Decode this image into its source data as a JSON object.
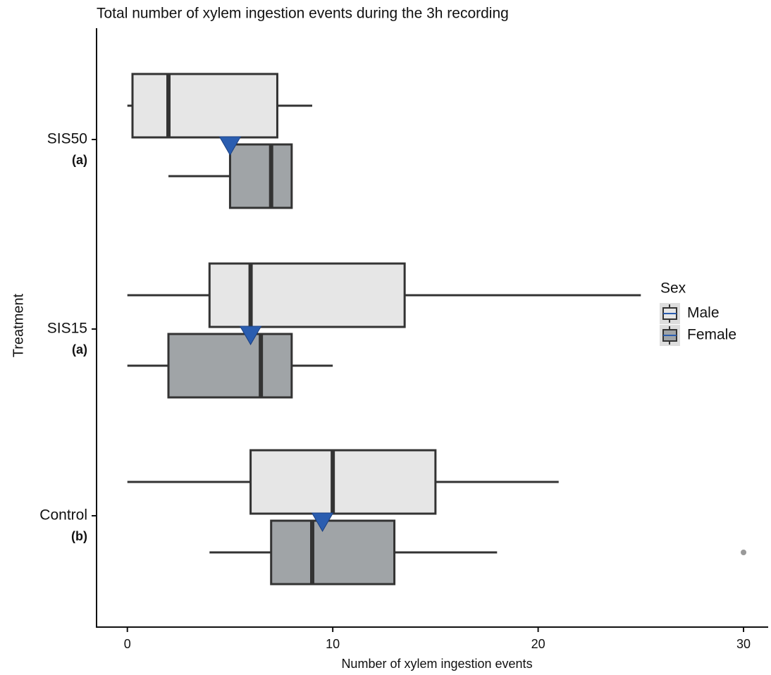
{
  "chart_data": {
    "type": "boxplot",
    "orientation": "horizontal",
    "title": "Total number of xylem ingestion events during the 3h recording",
    "x_label": "Number of xylem ingestion events",
    "y_label": "Treatment",
    "categories": [
      "SIS50",
      "SIS15",
      "Control"
    ],
    "group_letters": [
      "(a)",
      "(a)",
      "(b)"
    ],
    "xlim": [
      -1.5,
      31.2
    ],
    "xticks": [
      0,
      10,
      20,
      30
    ],
    "legend_title": "Sex",
    "legend_position": "right",
    "series": [
      {
        "name": "Male",
        "color": "#e6e6e6",
        "boxes": [
          {
            "low": 0,
            "q1": 0.25,
            "median": 2,
            "q3": 7.3,
            "high": 9
          },
          {
            "low": 0,
            "q1": 4,
            "median": 6,
            "q3": 13.5,
            "high": 25
          },
          {
            "low": 0,
            "q1": 6,
            "median": 10,
            "q3": 15,
            "high": 21
          }
        ],
        "outliers": [
          [],
          [],
          []
        ]
      },
      {
        "name": "Female",
        "color": "#a0a4a7",
        "boxes": [
          {
            "low": 2,
            "q1": 5,
            "median": 7,
            "q3": 8,
            "high": 8
          },
          {
            "low": 0,
            "q1": 2,
            "median": 6.5,
            "q3": 8,
            "high": 10
          },
          {
            "low": 4,
            "q1": 7,
            "median": 9,
            "q3": 13,
            "high": 18
          }
        ],
        "outliers": [
          [],
          [],
          [
            30
          ]
        ]
      }
    ],
    "means": {
      "color": "#2a5db0",
      "values": [
        5,
        6,
        9.5
      ]
    }
  }
}
